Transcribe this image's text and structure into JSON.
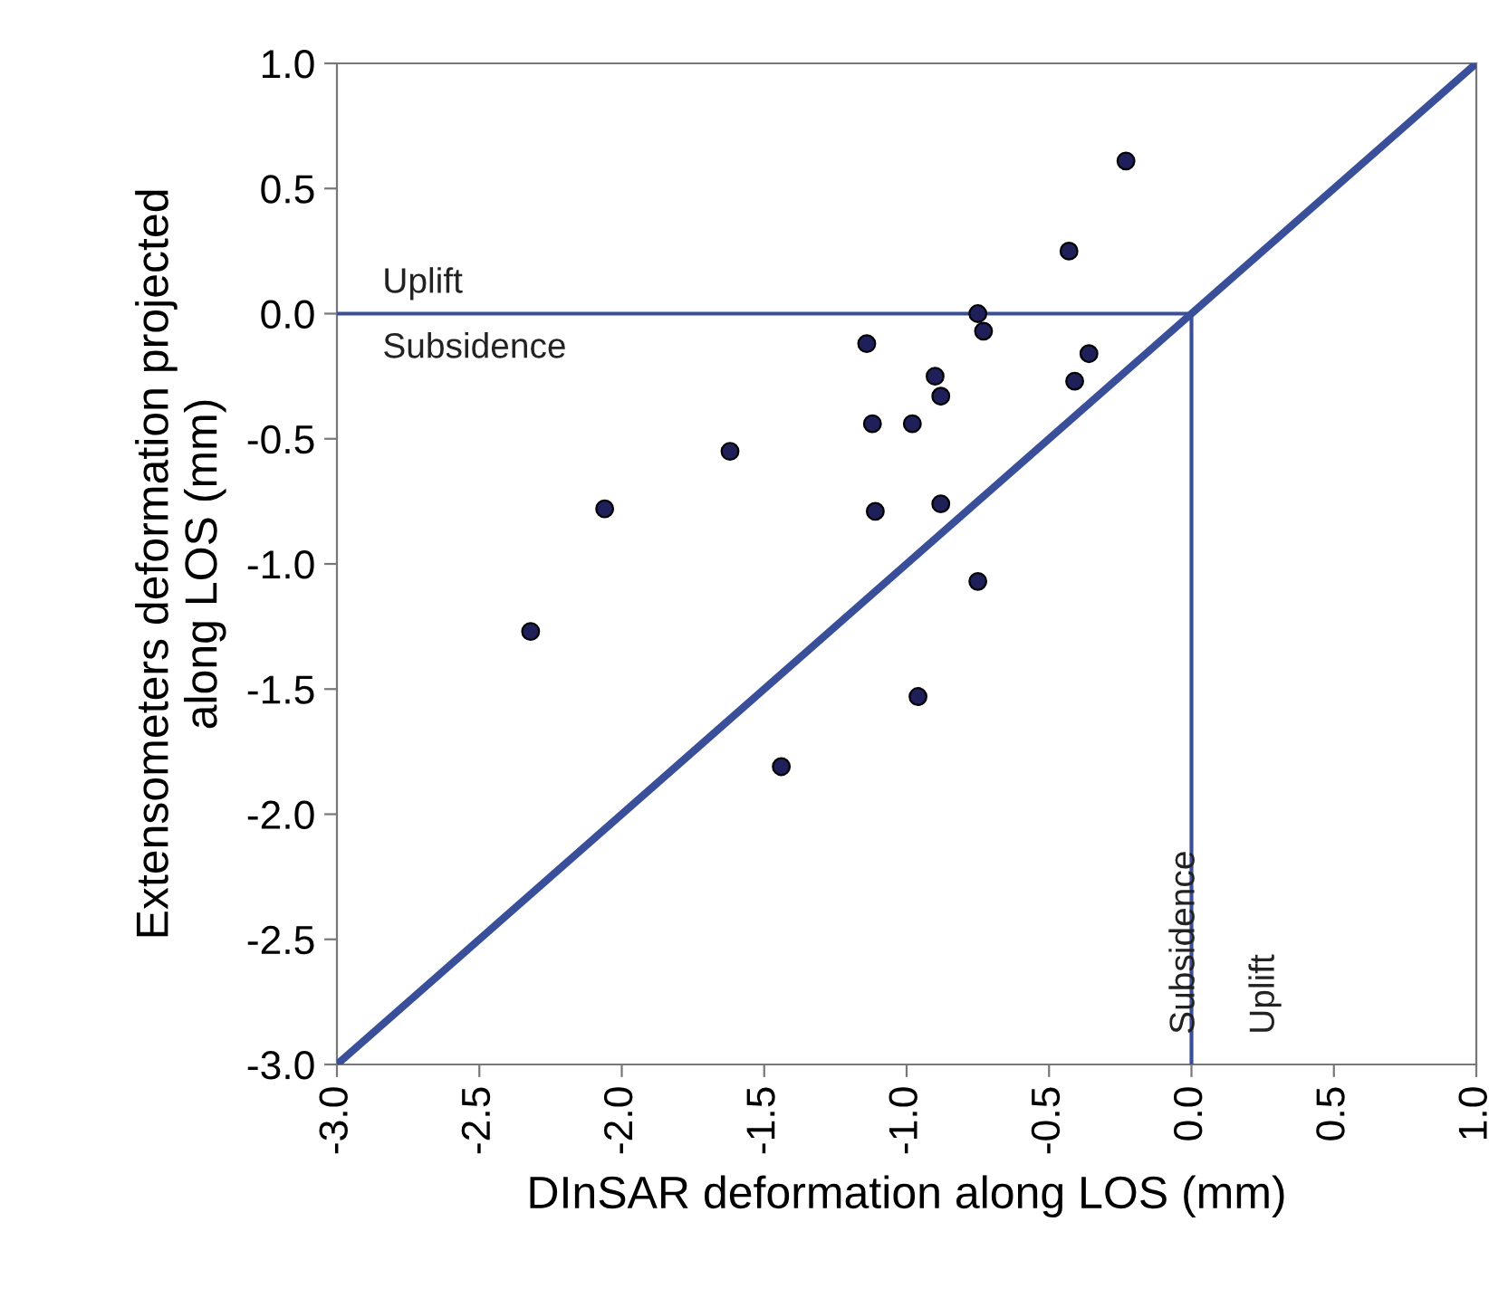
{
  "chart_data": {
    "type": "scatter",
    "xlabel": "DInSAR deformation along LOS (mm)",
    "ylabel": "Extensometers deformation projected\nalong LOS (mm)",
    "xlim": [
      -3.0,
      1.0
    ],
    "ylim": [
      -3.0,
      1.0
    ],
    "xticks": [
      {
        "value": -3.0,
        "label": "-3.0"
      },
      {
        "value": -2.5,
        "label": "-2.5"
      },
      {
        "value": -2.0,
        "label": "-2.0"
      },
      {
        "value": -1.5,
        "label": "-1.5"
      },
      {
        "value": -1.0,
        "label": "-1.0"
      },
      {
        "value": -0.5,
        "label": "-0.5"
      },
      {
        "value": 0.0,
        "label": "0.0"
      },
      {
        "value": 0.5,
        "label": "0.5"
      },
      {
        "value": 1.0,
        "label": "1.0"
      }
    ],
    "yticks": [
      {
        "value": -3.0,
        "label": "-3.0"
      },
      {
        "value": -2.5,
        "label": "-2.5"
      },
      {
        "value": -2.0,
        "label": "-2.0"
      },
      {
        "value": -1.5,
        "label": "-1.5"
      },
      {
        "value": -1.0,
        "label": "-1.0"
      },
      {
        "value": -0.5,
        "label": "-0.5"
      },
      {
        "value": 0.0,
        "label": "0.0"
      },
      {
        "value": 0.5,
        "label": "0.5"
      },
      {
        "value": 1.0,
        "label": "1.0"
      }
    ],
    "grid": false,
    "legend": false,
    "series": [
      {
        "color": "#1f1f5a",
        "marker": "circle",
        "x": [
          -0.23,
          -0.43,
          -0.75,
          -0.73,
          -1.14,
          -0.36,
          -0.9,
          -0.41,
          -0.88,
          -1.12,
          -0.98,
          -1.62,
          -2.06,
          -1.11,
          -0.88,
          -0.75,
          -2.32,
          -0.96,
          -1.44
        ],
        "values": [
          0.61,
          0.25,
          0.0,
          -0.07,
          -0.12,
          -0.16,
          -0.25,
          -0.27,
          -0.33,
          -0.44,
          -0.44,
          -0.55,
          -0.78,
          -0.79,
          -0.76,
          -1.07,
          -1.27,
          -1.53,
          -1.81
        ]
      },
      {
        "type": "line",
        "color": "#3a4f9a",
        "x": [
          -3.0,
          1.0
        ],
        "values": [
          -3.0,
          1.0
        ]
      },
      {
        "type": "line",
        "color": "#3a4f9a",
        "x": [
          -3.0,
          0.0
        ],
        "values": [
          0.0,
          0.0
        ]
      },
      {
        "type": "line",
        "color": "#3a4f9a",
        "x": [
          0.0,
          0.0
        ],
        "values": [
          -3.0,
          0.0
        ]
      }
    ],
    "annotations": [
      "Uplift",
      "Subsidence",
      "Subsidence",
      "Uplift"
    ]
  }
}
